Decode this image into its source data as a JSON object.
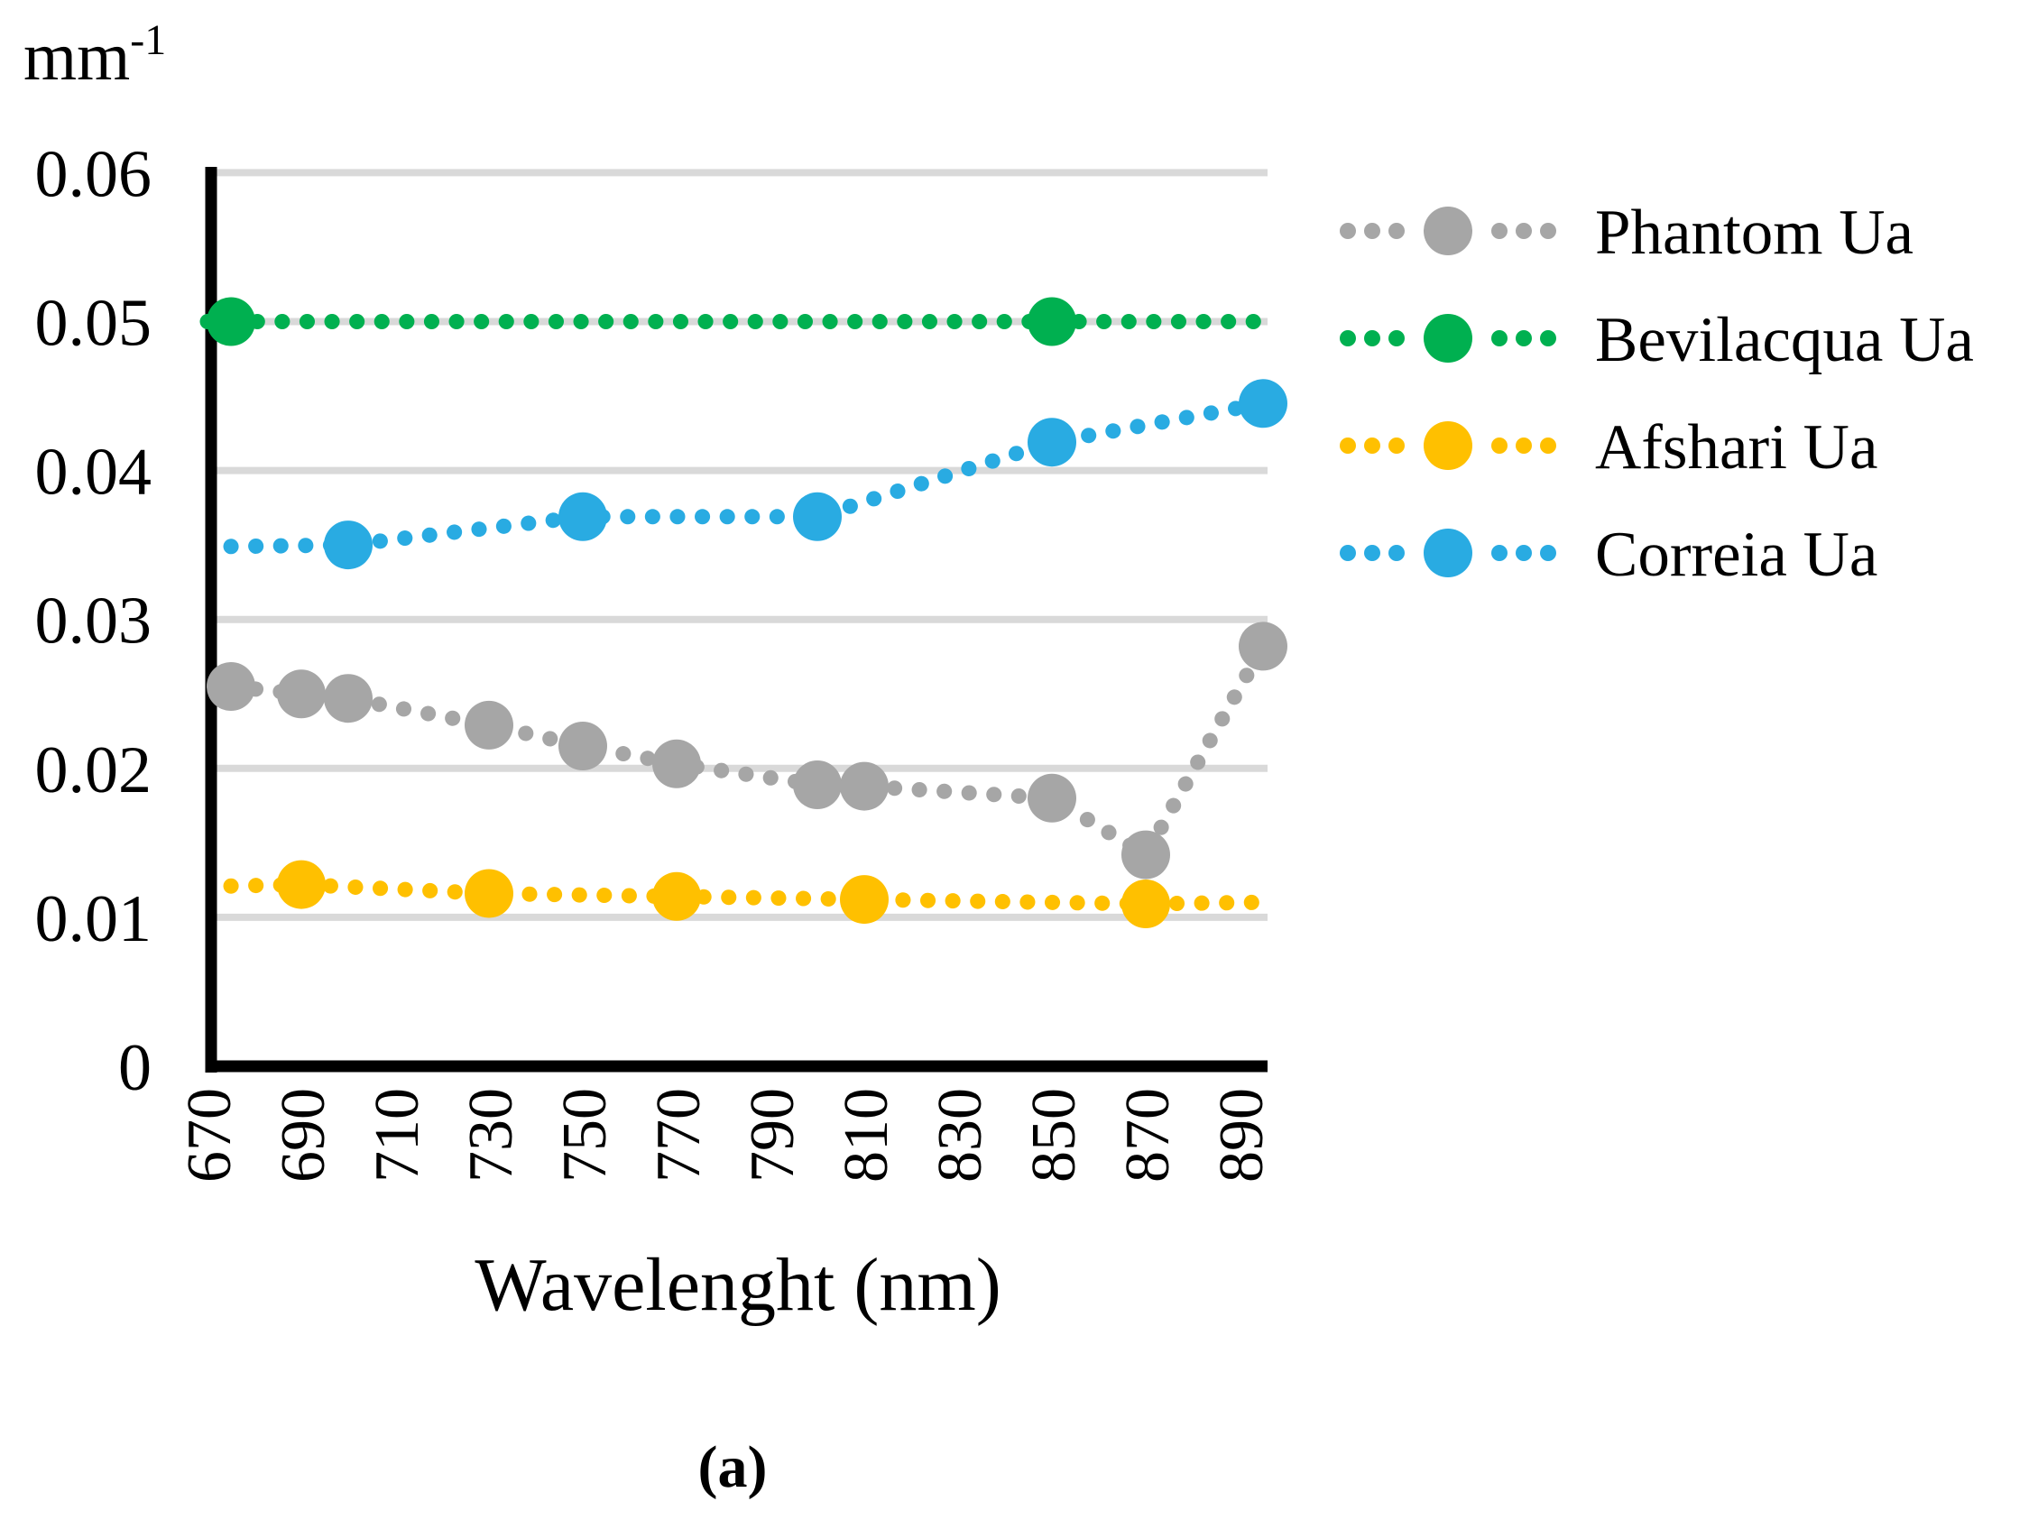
{
  "figure": {
    "unit_base": "mm",
    "unit_exponent": "-1",
    "x_axis_title": "Wavelenght (nm)",
    "caption": "(a)"
  },
  "chart_data": {
    "type": "scatter",
    "title": "",
    "xlabel": "Wavelenght (nm)",
    "ylabel": "mm-1",
    "grid": true,
    "legend_position": "right",
    "xlim": [
      670,
      897
    ],
    "ylim": [
      0,
      0.06
    ],
    "x_ticks": [
      670,
      690,
      710,
      730,
      750,
      770,
      790,
      810,
      830,
      850,
      870,
      890
    ],
    "y_ticks": [
      0,
      0.01,
      0.02,
      0.03,
      0.04,
      0.05,
      0.06
    ],
    "y_tick_labels": [
      "0",
      "0.01",
      "0.02",
      "0.03",
      "0.04",
      "0.05",
      "0.06"
    ],
    "colors": {
      "grid": "#D9D9D9",
      "axis": "#000000",
      "phantom": "#A6A6A6",
      "bevilacqua": "#00B050",
      "afshari": "#FFC000",
      "correia": "#29ABE2"
    },
    "series": [
      {
        "name": "Phantom Ua",
        "color": "#A6A6A6",
        "points": [
          {
            "x": 675,
            "y": 0.0255,
            "marker": true
          },
          {
            "x": 690,
            "y": 0.025,
            "marker": true
          },
          {
            "x": 700,
            "y": 0.0247,
            "marker": true
          },
          {
            "x": 730,
            "y": 0.0229,
            "marker": true
          },
          {
            "x": 750,
            "y": 0.0215,
            "marker": true
          },
          {
            "x": 770,
            "y": 0.0203,
            "marker": true
          },
          {
            "x": 800,
            "y": 0.0189,
            "marker": true
          },
          {
            "x": 810,
            "y": 0.0188,
            "marker": true
          },
          {
            "x": 850,
            "y": 0.018,
            "marker": true
          },
          {
            "x": 870,
            "y": 0.0142,
            "marker": true
          },
          {
            "x": 895,
            "y": 0.0282,
            "marker": true
          }
        ]
      },
      {
        "name": "Bevilacqua Ua",
        "color": "#00B050",
        "points": [
          {
            "x": 670,
            "y": 0.05,
            "marker": false
          },
          {
            "x": 675,
            "y": 0.05,
            "marker": true
          },
          {
            "x": 850,
            "y": 0.05,
            "marker": true
          },
          {
            "x": 893,
            "y": 0.05,
            "marker": false
          }
        ]
      },
      {
        "name": "Afshari Ua",
        "color": "#FFC000",
        "points": [
          {
            "x": 675,
            "y": 0.0121,
            "marker": false
          },
          {
            "x": 690,
            "y": 0.0122,
            "marker": true
          },
          {
            "x": 730,
            "y": 0.0116,
            "marker": true
          },
          {
            "x": 770,
            "y": 0.0114,
            "marker": true
          },
          {
            "x": 810,
            "y": 0.0112,
            "marker": true
          },
          {
            "x": 870,
            "y": 0.0109,
            "marker": true
          },
          {
            "x": 893,
            "y": 0.011,
            "marker": false
          }
        ]
      },
      {
        "name": "Correia Ua",
        "color": "#29ABE2",
        "points": [
          {
            "x": 675,
            "y": 0.0349,
            "marker": false
          },
          {
            "x": 700,
            "y": 0.035,
            "marker": true
          },
          {
            "x": 750,
            "y": 0.0369,
            "marker": true
          },
          {
            "x": 800,
            "y": 0.0369,
            "marker": true
          },
          {
            "x": 850,
            "y": 0.0419,
            "marker": true
          },
          {
            "x": 895,
            "y": 0.0445,
            "marker": true
          }
        ]
      }
    ]
  }
}
